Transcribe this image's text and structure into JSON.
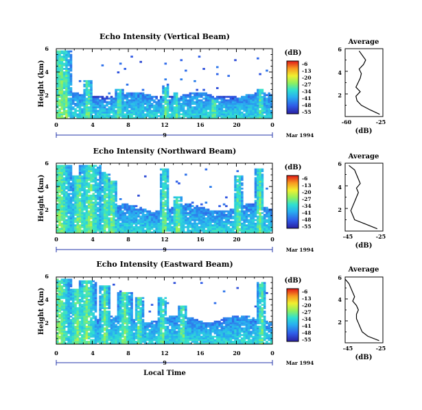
{
  "chart_data": [
    {
      "type": "heatmap",
      "title": "Echo Intensity (Vertical Beam)",
      "ylabel": "Height (km)",
      "xlabel": "",
      "x_ticks": [
        "0",
        "4",
        "8",
        "12",
        "16",
        "20",
        "0"
      ],
      "y_ticks": [
        "6",
        "4",
        "2"
      ],
      "xlim": [
        0,
        24
      ],
      "ylim": [
        0,
        6
      ],
      "date_marker": "9",
      "date_label": "Mar 1994",
      "colorbar": {
        "title": "(dB)",
        "ticks": [
          "-6",
          "-13",
          "-20",
          "-27",
          "-34",
          "-41",
          "-48",
          "-55"
        ],
        "range": [
          -55,
          -6
        ]
      },
      "average_profile": {
        "title": "Average",
        "xlabel": "(dB)",
        "x_ticks": [
          "-60",
          "-25"
        ],
        "xlim": [
          -60,
          -25
        ],
        "y_ticks": [
          "6",
          "4",
          "2"
        ],
        "ylim": [
          0,
          6
        ],
        "heights": [
          0.2,
          0.6,
          1.0,
          1.4,
          1.8,
          2.2,
          2.6,
          3.0,
          3.4,
          3.8,
          4.2,
          4.6,
          5.0,
          5.4,
          5.8
        ],
        "values": [
          -28,
          -37,
          -45,
          -49,
          -50,
          -46,
          -50,
          -48,
          -46,
          -45,
          -47,
          -43,
          -41,
          -44,
          -47
        ]
      }
    },
    {
      "type": "heatmap",
      "title": "Echo Intensity (Northward Beam)",
      "ylabel": "Height (km)",
      "xlabel": "",
      "x_ticks": [
        "0",
        "4",
        "8",
        "12",
        "16",
        "20",
        "0"
      ],
      "y_ticks": [
        "6",
        "4",
        "2"
      ],
      "xlim": [
        0,
        24
      ],
      "ylim": [
        0,
        6
      ],
      "date_marker": "9",
      "date_label": "Mar 1994",
      "colorbar": {
        "title": "(dB)",
        "ticks": [
          "-6",
          "-13",
          "-20",
          "-27",
          "-34",
          "-41",
          "-48",
          "-55"
        ],
        "range": [
          -55,
          -6
        ]
      },
      "average_profile": {
        "title": "Average",
        "xlabel": "(dB)",
        "x_ticks": [
          "-45",
          "-25"
        ],
        "xlim": [
          -45,
          -25
        ],
        "y_ticks": [
          "6",
          "4",
          "2"
        ],
        "ylim": [
          0,
          6
        ],
        "heights": [
          0.2,
          0.6,
          1.0,
          1.4,
          1.8,
          2.2,
          2.6,
          3.0,
          3.4,
          3.8,
          4.2,
          4.6,
          5.0,
          5.4,
          5.8
        ],
        "values": [
          -28,
          -34,
          -40,
          -41,
          -42,
          -41,
          -40,
          -39,
          -38,
          -39,
          -37,
          -38,
          -39,
          -40,
          -43
        ]
      }
    },
    {
      "type": "heatmap",
      "title": "Echo Intensity (Eastward Beam)",
      "ylabel": "Height (km)",
      "xlabel": "Local Time",
      "x_ticks": [
        "0",
        "4",
        "8",
        "12",
        "16",
        "20",
        "0"
      ],
      "y_ticks": [
        "6",
        "4",
        "2"
      ],
      "xlim": [
        0,
        24
      ],
      "ylim": [
        0,
        6
      ],
      "date_marker": "9",
      "date_label": "Mar 1994",
      "colorbar": {
        "title": "(dB)",
        "ticks": [
          "-6",
          "-13",
          "-20",
          "-27",
          "-34",
          "-41",
          "-48",
          "-55"
        ],
        "range": [
          -55,
          -6
        ]
      },
      "average_profile": {
        "title": "Average",
        "xlabel": "(dB)",
        "x_ticks": [
          "-45",
          "-25"
        ],
        "xlim": [
          -45,
          -25
        ],
        "y_ticks": [
          "6",
          "4",
          "2"
        ],
        "ylim": [
          0,
          6
        ],
        "heights": [
          0.2,
          0.6,
          1.0,
          1.4,
          1.8,
          2.2,
          2.6,
          3.0,
          3.4,
          3.8,
          4.2,
          4.6,
          5.0,
          5.4,
          5.8
        ],
        "values": [
          -27,
          -33,
          -36,
          -37,
          -38,
          -39,
          -39,
          -38,
          -39,
          -41,
          -40,
          -41,
          -42,
          -43,
          -45
        ]
      }
    }
  ]
}
